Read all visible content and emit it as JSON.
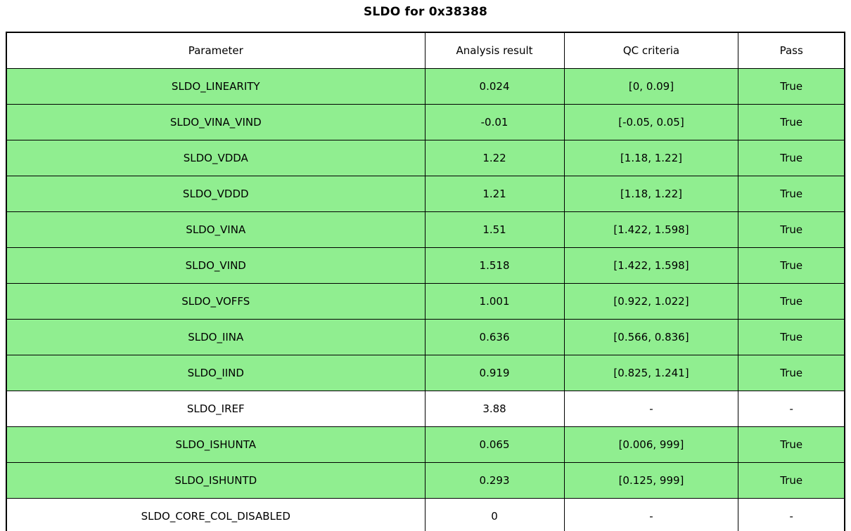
{
  "title": "SLDO for 0x38388",
  "colors": {
    "pass_green": "#90EE90",
    "border": "#000000",
    "background": "#ffffff",
    "text": "#000000"
  },
  "chart_data": {
    "type": "table",
    "title": "SLDO for 0x38388",
    "columns": [
      "Parameter",
      "Analysis result",
      "QC criteria",
      "Pass"
    ],
    "rows": [
      {
        "parameter": "SLDO_LINEARITY",
        "result": "0.024",
        "criteria": "[0, 0.09]",
        "pass": "True",
        "highlight": true
      },
      {
        "parameter": "SLDO_VINA_VIND",
        "result": "-0.01",
        "criteria": "[-0.05, 0.05]",
        "pass": "True",
        "highlight": true
      },
      {
        "parameter": "SLDO_VDDA",
        "result": "1.22",
        "criteria": "[1.18, 1.22]",
        "pass": "True",
        "highlight": true
      },
      {
        "parameter": "SLDO_VDDD",
        "result": "1.21",
        "criteria": "[1.18, 1.22]",
        "pass": "True",
        "highlight": true
      },
      {
        "parameter": "SLDO_VINA",
        "result": "1.51",
        "criteria": "[1.422, 1.598]",
        "pass": "True",
        "highlight": true
      },
      {
        "parameter": "SLDO_VIND",
        "result": "1.518",
        "criteria": "[1.422, 1.598]",
        "pass": "True",
        "highlight": true
      },
      {
        "parameter": "SLDO_VOFFS",
        "result": "1.001",
        "criteria": "[0.922, 1.022]",
        "pass": "True",
        "highlight": true
      },
      {
        "parameter": "SLDO_IINA",
        "result": "0.636",
        "criteria": "[0.566, 0.836]",
        "pass": "True",
        "highlight": true
      },
      {
        "parameter": "SLDO_IIND",
        "result": "0.919",
        "criteria": "[0.825, 1.241]",
        "pass": "True",
        "highlight": true
      },
      {
        "parameter": "SLDO_IREF",
        "result": "3.88",
        "criteria": "-",
        "pass": "-",
        "highlight": false
      },
      {
        "parameter": "SLDO_ISHUNTA",
        "result": "0.065",
        "criteria": "[0.006, 999]",
        "pass": "True",
        "highlight": true
      },
      {
        "parameter": "SLDO_ISHUNTD",
        "result": "0.293",
        "criteria": "[0.125, 999]",
        "pass": "True",
        "highlight": true
      },
      {
        "parameter": "SLDO_CORE_COL_DISABLED",
        "result": "0",
        "criteria": "-",
        "pass": "-",
        "highlight": false
      }
    ],
    "row_highlight_color": "#90EE90",
    "layout_hints": {
      "grid": "all-borders",
      "highlight_meaning": "QC check passed"
    }
  }
}
